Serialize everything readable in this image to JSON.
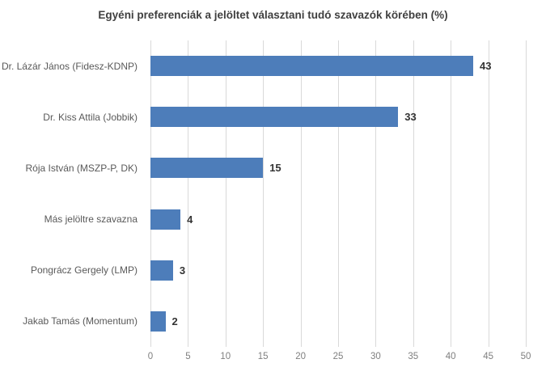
{
  "chart_data": {
    "type": "bar",
    "orientation": "horizontal",
    "title": "Egyéni preferenciák a jelöltet választani tudó szavazók körében (%)",
    "categories": [
      "Dr. Lázár János (Fidesz-KDNP)",
      "Dr. Kiss Attila (Jobbik)",
      "Rója István (MSZP-P, DK)",
      "Más jelöltre szavazna",
      "Pongrácz Gergely (LMP)",
      "Jakab Tamás (Momentum)"
    ],
    "values": [
      43,
      33,
      15,
      4,
      3,
      2
    ],
    "xlabel": "",
    "ylabel": "",
    "xlim": [
      0,
      50
    ],
    "x_ticks": [
      0,
      5,
      10,
      15,
      20,
      25,
      30,
      35,
      40,
      45,
      50
    ],
    "grid": true,
    "data_labels": true,
    "legend": false,
    "bar_color": "#4d7dba",
    "gridline_color": "#d9d9d9",
    "title_color": "#404040",
    "category_label_color": "#595959",
    "value_label_color": "#333333",
    "tick_label_color": "#7f7f7f"
  }
}
